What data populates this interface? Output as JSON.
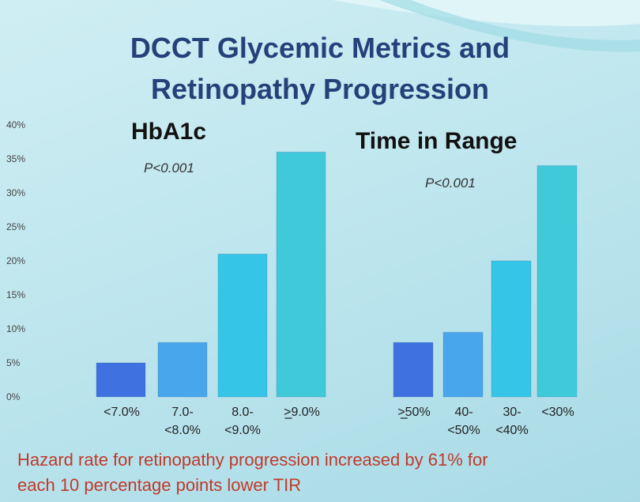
{
  "title_line1": "DCCT Glycemic Metrics and",
  "title_line2": "Retinopathy Progression",
  "footnote_line1": "Hazard rate for retinopathy progression increased by 61% for",
  "footnote_line2": "each 10 percentage points lower TIR",
  "colors": {
    "title": "#24417a",
    "footnote": "#c0392b",
    "bar1": "#3f71e0",
    "bar2": "#48a6ec",
    "bar3": "#35c5e6",
    "bar4": "#40c9d8"
  },
  "chart_data": [
    {
      "type": "bar",
      "title": "HbA1c",
      "annotation": "P<0.001",
      "categories": [
        [
          "<7.0%"
        ],
        [
          "7.0-",
          "<8.0%"
        ],
        [
          "8.0-",
          "<9.0%"
        ],
        [
          ">9.0%"
        ]
      ],
      "values": [
        5,
        8,
        21,
        36
      ],
      "ylim": [
        0,
        40
      ],
      "yticks": [
        "0%",
        "5%",
        "10%",
        "15%",
        "20%",
        "25%",
        "30%",
        "35%",
        "40%"
      ]
    },
    {
      "type": "bar",
      "title": "Time in Range",
      "annotation": "P<0.001",
      "categories": [
        [
          ">50%"
        ],
        [
          "40-",
          "<50%"
        ],
        [
          "30-",
          "<40%"
        ],
        [
          "<30%"
        ]
      ],
      "values": [
        8,
        9.5,
        20,
        34
      ],
      "ylim": [
        0,
        40
      ]
    }
  ]
}
